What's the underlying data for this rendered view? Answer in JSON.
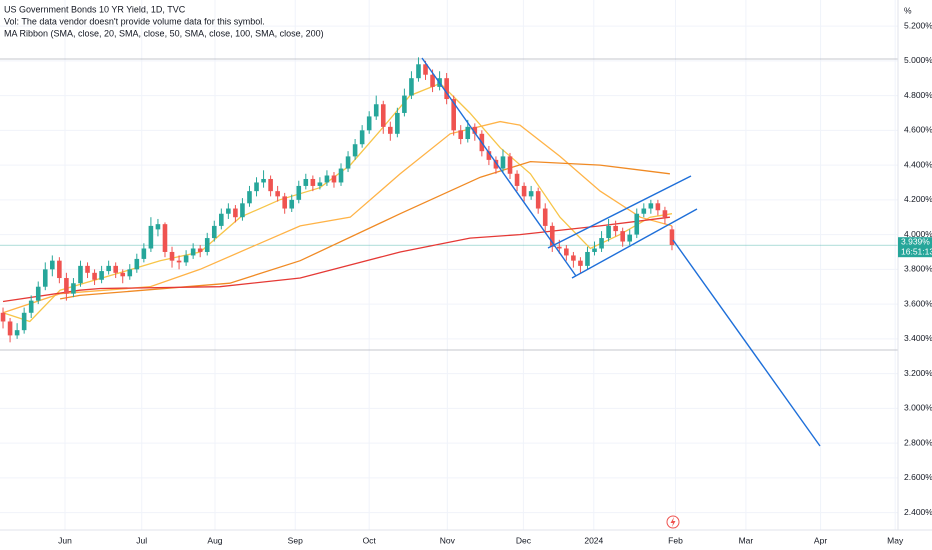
{
  "chart_data": {
    "type": "candlestick",
    "title": "US Government Bonds 10 YR Yield, 1D, TVC",
    "notes": [
      "Vol: The data vendor doesn't provide volume data for this symbol.",
      "MA Ribbon (SMA, close, 20, SMA, close, 50, SMA, close, 100, SMA, close, 200)"
    ],
    "y_unit": "%",
    "up_color": "#26a69a",
    "down_color": "#ef5350",
    "candles": [
      [
        3.55,
        3.58,
        3.46,
        3.5
      ],
      [
        3.5,
        3.52,
        3.38,
        3.42
      ],
      [
        3.42,
        3.49,
        3.4,
        3.45
      ],
      [
        3.45,
        3.58,
        3.43,
        3.55
      ],
      [
        3.55,
        3.65,
        3.52,
        3.62
      ],
      [
        3.62,
        3.73,
        3.6,
        3.7
      ],
      [
        3.7,
        3.84,
        3.68,
        3.8
      ],
      [
        3.8,
        3.88,
        3.76,
        3.85
      ],
      [
        3.85,
        3.87,
        3.72,
        3.75
      ],
      [
        3.75,
        3.78,
        3.62,
        3.66
      ],
      [
        3.66,
        3.75,
        3.64,
        3.72
      ],
      [
        3.72,
        3.85,
        3.7,
        3.82
      ],
      [
        3.82,
        3.84,
        3.75,
        3.78
      ],
      [
        3.78,
        3.8,
        3.71,
        3.74
      ],
      [
        3.74,
        3.82,
        3.72,
        3.79
      ],
      [
        3.79,
        3.85,
        3.77,
        3.82
      ],
      [
        3.82,
        3.84,
        3.75,
        3.78
      ],
      [
        3.78,
        3.8,
        3.72,
        3.76
      ],
      [
        3.76,
        3.83,
        3.74,
        3.8
      ],
      [
        3.8,
        3.89,
        3.78,
        3.86
      ],
      [
        3.86,
        3.95,
        3.84,
        3.92
      ],
      [
        3.92,
        4.1,
        3.9,
        4.05
      ],
      [
        4.03,
        4.09,
        3.99,
        4.06
      ],
      [
        4.06,
        4.07,
        3.87,
        3.9
      ],
      [
        3.9,
        3.93,
        3.81,
        3.85
      ],
      [
        3.85,
        3.88,
        3.8,
        3.84
      ],
      [
        3.84,
        3.91,
        3.82,
        3.88
      ],
      [
        3.88,
        3.95,
        3.86,
        3.92
      ],
      [
        3.92,
        3.94,
        3.87,
        3.9
      ],
      [
        3.9,
        4.01,
        3.88,
        3.98
      ],
      [
        3.98,
        4.08,
        3.96,
        4.05
      ],
      [
        4.05,
        4.15,
        4.03,
        4.12
      ],
      [
        4.12,
        4.18,
        4.09,
        4.15
      ],
      [
        4.15,
        4.17,
        4.07,
        4.1
      ],
      [
        4.1,
        4.21,
        4.08,
        4.18
      ],
      [
        4.18,
        4.28,
        4.16,
        4.25
      ],
      [
        4.25,
        4.33,
        4.22,
        4.3
      ],
      [
        4.3,
        4.37,
        4.27,
        4.32
      ],
      [
        4.32,
        4.34,
        4.22,
        4.25
      ],
      [
        4.25,
        4.28,
        4.19,
        4.22
      ],
      [
        4.22,
        4.24,
        4.12,
        4.15
      ],
      [
        4.15,
        4.23,
        4.13,
        4.2
      ],
      [
        4.2,
        4.31,
        4.18,
        4.28
      ],
      [
        4.28,
        4.35,
        4.26,
        4.32
      ],
      [
        4.32,
        4.34,
        4.25,
        4.28
      ],
      [
        4.28,
        4.33,
        4.26,
        4.3
      ],
      [
        4.3,
        4.37,
        4.28,
        4.34
      ],
      [
        4.34,
        4.36,
        4.27,
        4.3
      ],
      [
        4.3,
        4.41,
        4.28,
        4.38
      ],
      [
        4.38,
        4.48,
        4.36,
        4.45
      ],
      [
        4.45,
        4.55,
        4.43,
        4.52
      ],
      [
        4.52,
        4.63,
        4.5,
        4.6
      ],
      [
        4.6,
        4.71,
        4.58,
        4.68
      ],
      [
        4.68,
        4.8,
        4.66,
        4.75
      ],
      [
        4.75,
        4.77,
        4.58,
        4.62
      ],
      [
        4.62,
        4.65,
        4.54,
        4.58
      ],
      [
        4.58,
        4.73,
        4.56,
        4.7
      ],
      [
        4.7,
        4.84,
        4.68,
        4.8
      ],
      [
        4.8,
        4.94,
        4.78,
        4.9
      ],
      [
        4.9,
        5.02,
        4.88,
        4.98
      ],
      [
        4.98,
        5.0,
        4.89,
        4.92
      ],
      [
        4.92,
        4.95,
        4.82,
        4.85
      ],
      [
        4.85,
        4.94,
        4.83,
        4.9
      ],
      [
        4.9,
        4.93,
        4.75,
        4.78
      ],
      [
        4.78,
        4.8,
        4.57,
        4.6
      ],
      [
        4.6,
        4.63,
        4.52,
        4.55
      ],
      [
        4.55,
        4.66,
        4.53,
        4.62
      ],
      [
        4.62,
        4.64,
        4.54,
        4.58
      ],
      [
        4.58,
        4.6,
        4.45,
        4.48
      ],
      [
        4.48,
        4.51,
        4.4,
        4.43
      ],
      [
        4.43,
        4.45,
        4.35,
        4.38
      ],
      [
        4.38,
        4.49,
        4.36,
        4.45
      ],
      [
        4.45,
        4.47,
        4.32,
        4.35
      ],
      [
        4.35,
        4.37,
        4.25,
        4.28
      ],
      [
        4.28,
        4.3,
        4.19,
        4.22
      ],
      [
        4.22,
        4.28,
        4.2,
        4.25
      ],
      [
        4.25,
        4.27,
        4.12,
        4.15
      ],
      [
        4.15,
        4.18,
        4.02,
        4.05
      ],
      [
        4.05,
        4.07,
        3.9,
        3.93
      ],
      [
        3.93,
        3.97,
        3.89,
        3.92
      ],
      [
        3.92,
        3.94,
        3.85,
        3.88
      ],
      [
        3.88,
        3.9,
        3.81,
        3.85
      ],
      [
        3.85,
        3.87,
        3.78,
        3.82
      ],
      [
        3.82,
        3.93,
        3.8,
        3.9
      ],
      [
        3.9,
        3.96,
        3.88,
        3.92
      ],
      [
        3.92,
        4.02,
        3.9,
        3.98
      ],
      [
        3.98,
        4.09,
        3.96,
        4.05
      ],
      [
        4.05,
        4.08,
        3.99,
        4.02
      ],
      [
        4.02,
        4.04,
        3.93,
        3.96
      ],
      [
        3.96,
        4.03,
        3.94,
        4.0
      ],
      [
        4.0,
        4.15,
        3.98,
        4.12
      ],
      [
        4.12,
        4.18,
        4.1,
        4.15
      ],
      [
        4.15,
        4.2,
        4.12,
        4.18
      ],
      [
        4.18,
        4.2,
        4.11,
        4.14
      ],
      [
        4.14,
        4.16,
        4.06,
        4.1
      ],
      [
        4.03,
        4.05,
        3.91,
        3.94
      ]
    ],
    "ma_series": [
      {
        "color": "#f7c548",
        "x": [
          0,
          3.8,
          8.1,
          16.6,
          22.3,
          28,
          33.7,
          39.3,
          45,
          49.3,
          53.6,
          57.8,
          62.1,
          66.3,
          70.6,
          74.9,
          79.1,
          83.4,
          87.6,
          91.9,
          95
        ],
        "values": [
          3.55,
          3.5,
          3.68,
          3.78,
          3.85,
          3.9,
          4.1,
          4.2,
          4.27,
          4.4,
          4.6,
          4.8,
          4.87,
          4.7,
          4.5,
          4.35,
          4.1,
          3.92,
          4.0,
          4.1,
          4.12
        ]
      },
      {
        "color": "#ffb347",
        "x": [
          0,
          8.1,
          20.9,
          28,
          36.5,
          42.2,
          49.3,
          56.4,
          63.5,
          70.6,
          73.4,
          79.1,
          84.8,
          90.5,
          95
        ],
        "values": [
          3.55,
          3.66,
          3.7,
          3.8,
          3.95,
          4.05,
          4.1,
          4.35,
          4.58,
          4.65,
          4.63,
          4.45,
          4.25,
          4.1,
          4.05
        ]
      },
      {
        "color": "#f08a24",
        "x": [
          8.1,
          10.9,
          32.2,
          42.2,
          56.4,
          67.8,
          74.9,
          84.8,
          94.7
        ],
        "values": [
          3.63,
          3.65,
          3.72,
          3.85,
          4.12,
          4.33,
          4.42,
          4.4,
          4.35
        ]
      },
      {
        "color": "#e53935",
        "x": [
          0,
          10.9,
          13.8,
          30.8,
          42.2,
          56.4,
          66.3,
          73.4,
          84.8,
          94.7
        ],
        "values": [
          3.615,
          3.68,
          3.69,
          3.7,
          3.75,
          3.9,
          3.98,
          4.0,
          4.05,
          4.1
        ]
      }
    ],
    "last_price": {
      "value": 3.939,
      "label": "3.939%"
    },
    "countdown": "16:51:13",
    "ylim": [
      2.3,
      5.35
    ],
    "yticks": [
      {
        "value": 2.4,
        "label": "2.400%"
      },
      {
        "value": 2.6,
        "label": "2.600%"
      },
      {
        "value": 2.8,
        "label": "2.800%"
      },
      {
        "value": 3.0,
        "label": "3.000%"
      },
      {
        "value": 3.2,
        "label": "3.200%"
      },
      {
        "value": 3.4,
        "label": "3.400%"
      },
      {
        "value": 3.6,
        "label": "3.600%"
      },
      {
        "value": 3.8,
        "label": "3.800%"
      },
      {
        "value": 4.0,
        "label": "4.000%"
      },
      {
        "value": 4.2,
        "label": "4.200%"
      },
      {
        "value": 4.4,
        "label": "4.400%"
      },
      {
        "value": 4.6,
        "label": "4.600%"
      },
      {
        "value": 4.8,
        "label": "4.800%"
      },
      {
        "value": 5.0,
        "label": "5.000%"
      },
      {
        "value": 5.2,
        "label": "5.200%"
      }
    ],
    "xlim": [
      -0.43,
      127.1
    ],
    "xticks": [
      {
        "value": 8.8,
        "label": "Jun"
      },
      {
        "value": 19.7,
        "label": "Jul"
      },
      {
        "value": 30.1,
        "label": "Aug"
      },
      {
        "value": 41.5,
        "label": "Sep"
      },
      {
        "value": 52.0,
        "label": "Oct"
      },
      {
        "value": 63.1,
        "label": "Nov"
      },
      {
        "value": 73.9,
        "label": "Dec"
      },
      {
        "value": 83.9,
        "label": "2024"
      },
      {
        "value": 95.5,
        "label": "Feb"
      },
      {
        "value": 105.5,
        "label": "Mar"
      },
      {
        "value": 116.1,
        "label": "Apr"
      },
      {
        "value": 126.7,
        "label": "May"
      }
    ],
    "grid": true
  }
}
